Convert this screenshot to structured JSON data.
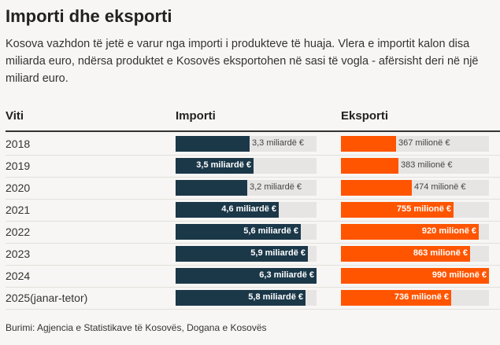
{
  "title": "Importi dhe eksporti",
  "description": "Kosova vazhdon të jetë e varur nga importi i produkteve të huaja. Vlera e importit kalon disa miliarda euro, ndërsa produktet e Kosovës eksportohen në sasi të vogla - afërsisht deri në një miliard euro.",
  "source": "Burimi: Agjencia e Statistikave të Kosovës, Dogana e Kosovës",
  "colors": {
    "import": "#1b3849",
    "export": "#ff5500",
    "track": "#e6e5e3"
  },
  "chart_data": {
    "type": "bar",
    "columns": [
      "Viti",
      "Importi",
      "Eksporti"
    ],
    "categories": [
      "2018",
      "2019",
      "2020",
      "2021",
      "2022",
      "2023",
      "2024",
      "2025(janar-tetor)"
    ],
    "series": [
      {
        "name": "Importi",
        "unit": "miliardë €",
        "max": 6.3,
        "values": [
          3.3,
          3.5,
          3.2,
          4.6,
          5.6,
          5.9,
          6.3,
          5.8
        ],
        "labels": [
          "3,3 miliardë €",
          "3,5 miliardë €",
          "3,2 miliardë €",
          "4,6 miliardë €",
          "5,6 miliardë €",
          "5,9 miliardë €",
          "6,3 miliardë €",
          "5,8 miliardë €"
        ]
      },
      {
        "name": "Eksporti",
        "unit": "milionë €",
        "max": 990,
        "values": [
          367,
          383,
          474,
          755,
          920,
          863,
          990,
          736
        ],
        "labels": [
          "367 milionë €",
          "383 milionë €",
          "474 milionë €",
          "755 milionë €",
          "920 milionë €",
          "863 milionë €",
          "990 milionë €",
          "736 milionë €"
        ]
      }
    ]
  }
}
